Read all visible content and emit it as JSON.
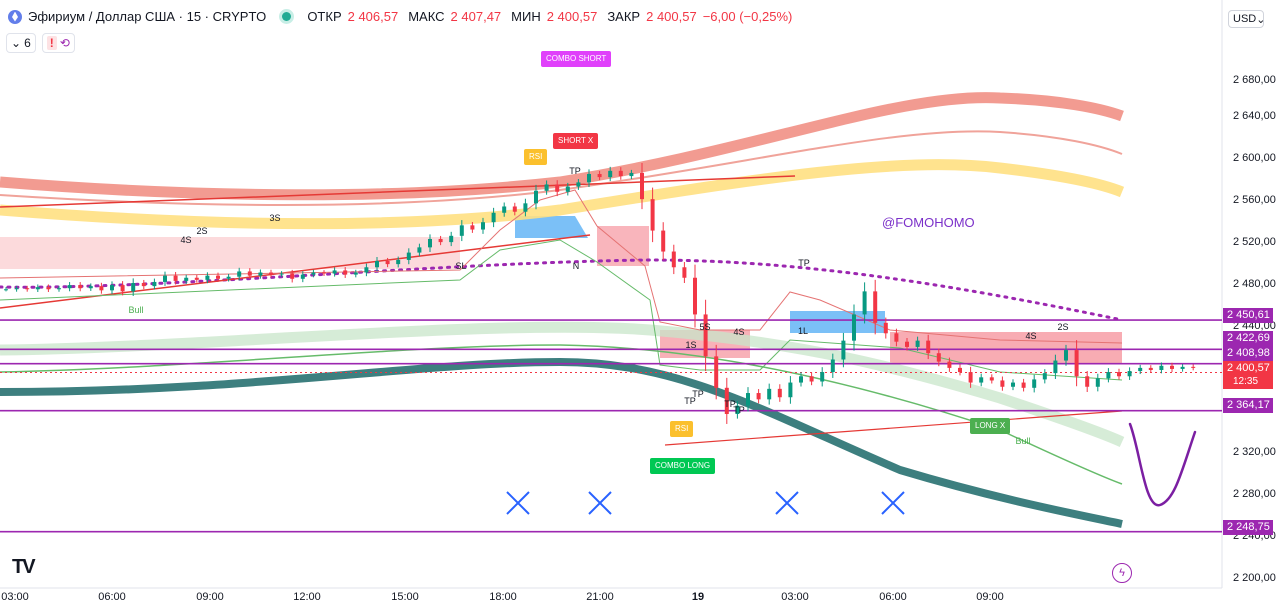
{
  "header": {
    "symbol": "Эфириум / Доллар США · 15 · CRYPTO",
    "open_label": "ОТКР",
    "open_value": "2 406,57",
    "high_label": "МАКС",
    "high_value": "2 407,47",
    "low_label": "МИН",
    "low_value": "2 400,57",
    "close_label": "ЗАКР",
    "close_value": "2 400,57",
    "change_value": "−6,00 (−0,25%)"
  },
  "toolbar": {
    "indicators_count": "6",
    "alert_glyph": "!",
    "currency": "USD"
  },
  "annotation_text": "@FOMOHOMO",
  "price_axis": {
    "ticks": [
      "2 680,00",
      "2 640,00",
      "2 600,00",
      "2 560,00",
      "2 520,00",
      "2 480,00",
      "2 440,00",
      "2 320,00",
      "2 280,00",
      "2 240,00",
      "2 200,00"
    ],
    "tags": [
      {
        "text": "2 450,61",
        "color": "#9c27b0"
      },
      {
        "text": "2 422,69",
        "color": "#9c27b0"
      },
      {
        "text": "2 408,98",
        "color": "#9c27b0"
      },
      {
        "text": "2 400,57",
        "color": "#f23645"
      },
      {
        "text": "12:35",
        "color": "#f23645"
      },
      {
        "text": "2 364,17",
        "color": "#9c27b0"
      },
      {
        "text": "2 248,75",
        "color": "#9c27b0"
      }
    ]
  },
  "time_axis": [
    "03:00",
    "06:00",
    "09:00",
    "12:00",
    "15:00",
    "18:00",
    "21:00",
    "19",
    "03:00",
    "06:00",
    "09:00"
  ],
  "tags": {
    "combo_short": "COMBO SHORT",
    "short_x": "SHORT X",
    "rsi_top": "RSI",
    "rsi_bottom": "RSI",
    "combo_long": "COMBO LONG",
    "long_x": "LONG X"
  },
  "signals": {
    "bull": "Bull",
    "s1": "1S",
    "s2": "2S",
    "s3": "3S",
    "sl": "SL",
    "tp": "TP",
    "one_l": "1L",
    "s4": "4S",
    "s5": "5S",
    "n": "N",
    "l1": "1L"
  },
  "colors": {
    "up": "#089981",
    "down": "#f23645",
    "level": "#9c27b0",
    "accent": "#2962ff"
  },
  "chart_data": {
    "type": "candlestick",
    "title": "Эфириум / Доллар США · 15 · CRYPTO",
    "ylim": [
      2195,
      2735
    ],
    "horizontal_levels": [
      2450.61,
      2422.69,
      2408.98,
      2364.17,
      2248.75
    ],
    "last_price": 2400.57
  }
}
